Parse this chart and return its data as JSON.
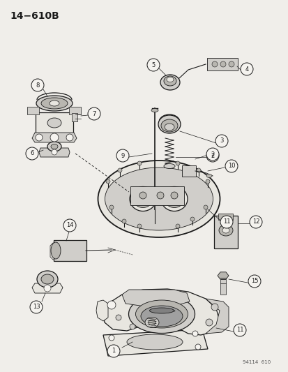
{
  "title": "14−610B",
  "background_color": "#f0eeea",
  "line_color": "#1a1a1a",
  "fig_width": 4.14,
  "fig_height": 5.33,
  "dpi": 100,
  "watermark": "94114  610",
  "lw_thin": 0.6,
  "lw_med": 0.9,
  "lw_thick": 1.3
}
